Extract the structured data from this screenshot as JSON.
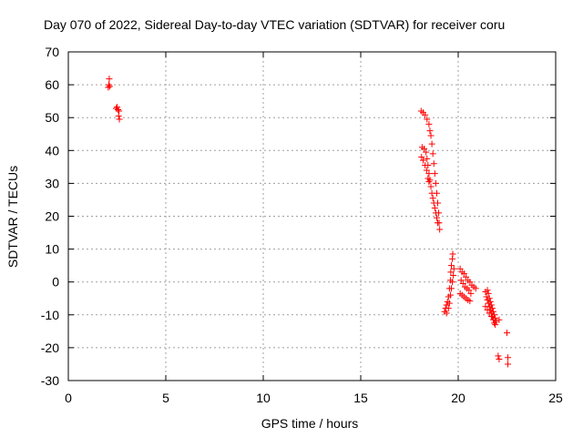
{
  "chart_data": {
    "type": "scatter",
    "title": "Day 070 of 2022, Sidereal Day-to-day VTEC variation (SDTVAR) for receiver coru",
    "xlabel": "GPS time / hours",
    "ylabel": "SDTVAR / TECUs",
    "xlim": [
      0,
      25
    ],
    "ylim": [
      -30,
      70
    ],
    "xticks": [
      0,
      5,
      10,
      15,
      20,
      25
    ],
    "yticks": [
      -30,
      -20,
      -10,
      0,
      10,
      20,
      30,
      40,
      50,
      60,
      70
    ],
    "grid": true,
    "marker": "+",
    "color": "#ff0000",
    "series": [
      {
        "name": "SDTVAR",
        "points": [
          [
            2.05,
            59.2
          ],
          [
            2.08,
            60.0
          ],
          [
            2.1,
            61.8
          ],
          [
            2.12,
            59.5
          ],
          [
            2.45,
            52.8
          ],
          [
            2.5,
            53.2
          ],
          [
            2.55,
            52.4
          ],
          [
            2.6,
            52.0
          ],
          [
            2.58,
            50.5
          ],
          [
            2.62,
            49.5
          ],
          [
            18.1,
            52.0
          ],
          [
            18.2,
            51.5
          ],
          [
            18.3,
            50.8
          ],
          [
            18.4,
            49.5
          ],
          [
            18.5,
            48.0
          ],
          [
            18.55,
            46.0
          ],
          [
            18.6,
            44.5
          ],
          [
            18.65,
            42.0
          ],
          [
            18.7,
            39.0
          ],
          [
            18.75,
            36.0
          ],
          [
            18.8,
            33.0
          ],
          [
            18.85,
            30.0
          ],
          [
            18.9,
            27.0
          ],
          [
            18.95,
            24.0
          ],
          [
            19.0,
            21.0
          ],
          [
            19.02,
            18.0
          ],
          [
            19.05,
            16.0
          ],
          [
            18.15,
            41.0
          ],
          [
            18.25,
            40.5
          ],
          [
            18.35,
            39.5
          ],
          [
            18.4,
            37.5
          ],
          [
            18.45,
            35.5
          ],
          [
            18.5,
            33.0
          ],
          [
            18.55,
            31.0
          ],
          [
            18.6,
            29.0
          ],
          [
            18.65,
            27.0
          ],
          [
            18.7,
            25.5
          ],
          [
            18.75,
            24.0
          ],
          [
            18.8,
            22.5
          ],
          [
            18.85,
            21.0
          ],
          [
            18.9,
            19.5
          ],
          [
            18.95,
            18.0
          ],
          [
            18.12,
            38.0
          ],
          [
            18.2,
            37.0
          ],
          [
            18.3,
            35.5
          ],
          [
            18.38,
            34.0
          ],
          [
            18.45,
            31.5
          ],
          [
            18.5,
            30.5
          ],
          [
            19.3,
            -9.0
          ],
          [
            19.35,
            -8.0
          ],
          [
            19.4,
            -7.0
          ],
          [
            19.45,
            -6.0
          ],
          [
            19.5,
            -4.5
          ],
          [
            19.55,
            -2.0
          ],
          [
            19.6,
            0.5
          ],
          [
            19.62,
            3.0
          ],
          [
            19.65,
            5.0
          ],
          [
            19.7,
            7.0
          ],
          [
            19.72,
            8.5
          ],
          [
            19.4,
            -9.5
          ],
          [
            19.5,
            -8.0
          ],
          [
            19.55,
            -6.5
          ],
          [
            19.6,
            -4.0
          ],
          [
            19.65,
            -2.0
          ],
          [
            19.7,
            0.0
          ],
          [
            19.75,
            2.0
          ],
          [
            19.78,
            4.0
          ],
          [
            20.1,
            4.0
          ],
          [
            20.2,
            3.0
          ],
          [
            20.3,
            2.5
          ],
          [
            20.4,
            1.5
          ],
          [
            20.5,
            0.5
          ],
          [
            20.6,
            0.0
          ],
          [
            20.7,
            -1.0
          ],
          [
            20.8,
            -1.5
          ],
          [
            20.9,
            -2.0
          ],
          [
            20.15,
            0.5
          ],
          [
            20.25,
            -0.5
          ],
          [
            20.35,
            -1.5
          ],
          [
            20.45,
            -2.0
          ],
          [
            20.55,
            -2.5
          ],
          [
            20.65,
            -3.5
          ],
          [
            20.1,
            -3.5
          ],
          [
            20.2,
            -4.0
          ],
          [
            20.3,
            -4.5
          ],
          [
            20.4,
            -5.0
          ],
          [
            20.5,
            -5.5
          ],
          [
            20.6,
            -5.8
          ],
          [
            21.4,
            -3.0
          ],
          [
            21.45,
            -4.5
          ],
          [
            21.5,
            -5.5
          ],
          [
            21.55,
            -6.5
          ],
          [
            21.6,
            -7.5
          ],
          [
            21.65,
            -8.5
          ],
          [
            21.7,
            -9.5
          ],
          [
            21.75,
            -10.5
          ],
          [
            21.8,
            -11.5
          ],
          [
            21.85,
            -12.5
          ],
          [
            21.9,
            -13.0
          ],
          [
            21.5,
            -2.5
          ],
          [
            21.55,
            -3.5
          ],
          [
            21.6,
            -5.0
          ],
          [
            21.65,
            -6.0
          ],
          [
            21.7,
            -7.0
          ],
          [
            21.75,
            -8.0
          ],
          [
            21.8,
            -9.0
          ],
          [
            21.85,
            -10.0
          ],
          [
            21.9,
            -11.0
          ],
          [
            21.95,
            -12.0
          ],
          [
            21.4,
            -7.5
          ],
          [
            21.5,
            -8.5
          ],
          [
            21.6,
            -9.5
          ],
          [
            21.7,
            -10.5
          ],
          [
            22.1,
            -11.5
          ],
          [
            22.05,
            -22.5
          ],
          [
            22.1,
            -23.5
          ],
          [
            22.5,
            -15.5
          ],
          [
            22.55,
            -23.0
          ],
          [
            22.55,
            -25.0
          ]
        ]
      }
    ]
  }
}
